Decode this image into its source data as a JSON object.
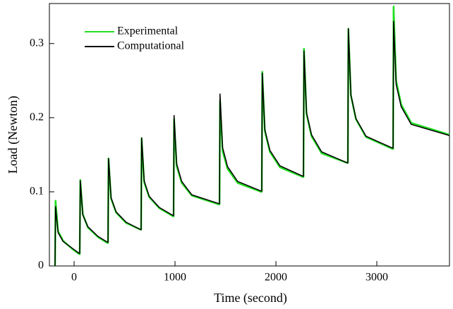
{
  "chart_data": {
    "type": "line",
    "x_label": "Time (second)",
    "y_label": "Load (Newton)",
    "x": [
      -189,
      -184,
      -159,
      -109,
      -9,
      51,
      56,
      61,
      86,
      136,
      236,
      331,
      336,
      341,
      366,
      416,
      516,
      659,
      664,
      669,
      694,
      744,
      844,
      981,
      986,
      991,
      1016,
      1066,
      1166,
      1436,
      1441,
      1446,
      1471,
      1521,
      1621,
      1855,
      1860,
      1865,
      1890,
      1940,
      2040,
      2268,
      2273,
      2278,
      2303,
      2353,
      2453,
      2708,
      2713,
      2718,
      2743,
      2793,
      2893,
      3156,
      3161,
      3166,
      3191,
      3241,
      3341,
      3720
    ],
    "series": [
      {
        "name": "Experimental",
        "color": "#22dd22",
        "values": [
          0,
          0.088,
          0.047,
          0.034,
          0.022,
          0.016,
          0.016,
          0.116,
          0.07,
          0.052,
          0.039,
          0.031,
          0.031,
          0.145,
          0.091,
          0.072,
          0.058,
          0.049,
          0.049,
          0.172,
          0.113,
          0.093,
          0.078,
          0.067,
          0.067,
          0.198,
          0.135,
          0.112,
          0.095,
          0.083,
          0.083,
          0.223,
          0.155,
          0.131,
          0.112,
          0.1,
          0.1,
          0.262,
          0.182,
          0.154,
          0.133,
          0.12,
          0.12,
          0.293,
          0.205,
          0.175,
          0.152,
          0.139,
          0.139,
          0.32,
          0.23,
          0.198,
          0.174,
          0.158,
          0.158,
          0.35,
          0.25,
          0.218,
          0.193,
          0.177
        ]
      },
      {
        "name": "Computational",
        "color": "#000000",
        "values": [
          0,
          0.08,
          0.045,
          0.033,
          0.023,
          0.017,
          0.017,
          0.115,
          0.069,
          0.053,
          0.04,
          0.032,
          0.032,
          0.145,
          0.092,
          0.073,
          0.059,
          0.049,
          0.049,
          0.173,
          0.115,
          0.094,
          0.079,
          0.068,
          0.068,
          0.203,
          0.138,
          0.114,
          0.096,
          0.084,
          0.084,
          0.232,
          0.16,
          0.134,
          0.114,
          0.101,
          0.101,
          0.26,
          0.184,
          0.156,
          0.135,
          0.121,
          0.121,
          0.29,
          0.207,
          0.177,
          0.154,
          0.139,
          0.139,
          0.32,
          0.231,
          0.199,
          0.175,
          0.159,
          0.159,
          0.33,
          0.245,
          0.215,
          0.191,
          0.176
        ]
      }
    ],
    "xlim": [
      -245,
      3720
    ],
    "ylim": [
      0,
      0.354
    ],
    "xticks": [
      0,
      1000,
      2000,
      3000
    ],
    "yticks": [
      0,
      0.1,
      0.2,
      0.3
    ],
    "legend": "upper-left"
  }
}
